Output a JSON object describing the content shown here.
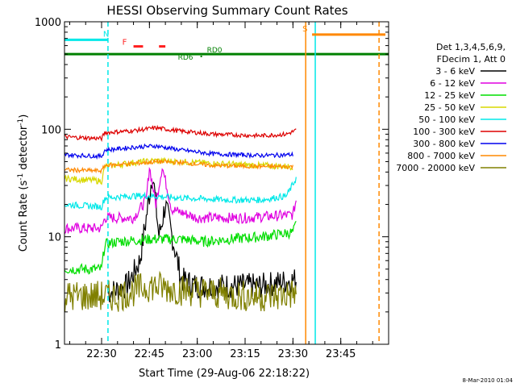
{
  "chart_data": {
    "type": "line",
    "title": "HESSI Observing Summary Count Rates",
    "xlabel": "Start Time (29-Aug-06 22:18:22)",
    "ylabel_main": "Count Rate (s",
    "ylabel_sup1": "-1",
    "ylabel_mid": " detector",
    "ylabel_sup2": "-1",
    "ylabel_end": ")",
    "yscale": "log",
    "ylim": [
      1,
      1000
    ],
    "xlim": [
      "22:18:22",
      "24:00"
    ],
    "x_ticks": [
      "22:30",
      "22:45",
      "23:00",
      "23:15",
      "23:30",
      "23:45"
    ],
    "y_ticks": [
      "1",
      "10",
      "100",
      "1000"
    ],
    "legend": {
      "placement": "right",
      "header1": "Det 1,3,4,5,6,9,",
      "header2": "FDecim 1, Att 0",
      "entries": [
        {
          "label": "3 - 6 keV",
          "color": "#000000"
        },
        {
          "label": "6 - 12 keV",
          "color": "#e000e0"
        },
        {
          "label": "12 - 25 keV",
          "color": "#00dd00"
        },
        {
          "label": "25 - 50 keV",
          "color": "#d8d800"
        },
        {
          "label": "50 - 100 keV",
          "color": "#00e8e8"
        },
        {
          "label": "100 - 300 keV",
          "color": "#dd0000"
        },
        {
          "label": "300 - 800 keV",
          "color": "#0000ee"
        },
        {
          "label": "800 - 7000 keV",
          "color": "#ff8800"
        },
        {
          "label": "7000 - 20000 keV",
          "color": "#808000"
        }
      ]
    },
    "series": [
      {
        "name": "3 - 6 keV",
        "color": "#000000",
        "x": [
          "22:32",
          "22:38",
          "22:42",
          "22:44",
          "22:46",
          "22:48",
          "22:50",
          "22:55",
          "23:00",
          "23:10",
          "23:20",
          "23:31"
        ],
        "y": [
          3,
          3.5,
          6,
          15,
          40,
          10,
          20,
          4,
          3.5,
          3.5,
          3.5,
          4
        ]
      },
      {
        "name": "6 - 12 keV",
        "color": "#e000e0",
        "x": [
          "22:18",
          "22:30",
          "22:31",
          "22:35",
          "22:40",
          "22:44",
          "22:45",
          "22:47",
          "22:49",
          "22:52",
          "23:00",
          "23:15",
          "23:30",
          "23:31"
        ],
        "y": [
          12,
          12,
          15,
          15,
          15,
          22,
          45,
          20,
          45,
          18,
          15,
          15,
          16,
          22
        ]
      },
      {
        "name": "12 - 25 keV",
        "color": "#00dd00",
        "x": [
          "22:18",
          "22:30",
          "22:31",
          "22:35",
          "22:45",
          "22:55",
          "23:02",
          "23:10",
          "23:20",
          "23:30",
          "23:31"
        ],
        "y": [
          5,
          5,
          8.5,
          9,
          9.5,
          9.5,
          9,
          9.5,
          10,
          11,
          13
        ]
      },
      {
        "name": "25 - 50 keV",
        "color": "#d8d800",
        "x": [
          "22:18",
          "22:30",
          "22:31",
          "22:40",
          "22:47",
          "22:55",
          "23:05",
          "23:20",
          "23:30"
        ],
        "y": [
          35,
          33,
          45,
          49,
          51,
          50,
          48,
          46,
          45
        ]
      },
      {
        "name": "50 - 100 keV",
        "color": "#00e8e8",
        "x": [
          "22:18",
          "22:30",
          "22:31",
          "22:40",
          "22:45",
          "22:55",
          "23:10",
          "23:20",
          "23:28",
          "23:31"
        ],
        "y": [
          20,
          19,
          23,
          24,
          24,
          23,
          22,
          22,
          24,
          35
        ]
      },
      {
        "name": "100 - 300 keV",
        "color": "#dd0000",
        "x": [
          "22:18",
          "22:30",
          "22:31",
          "22:40",
          "22:47",
          "22:55",
          "23:05",
          "23:20",
          "23:28",
          "23:31"
        ],
        "y": [
          85,
          82,
          93,
          97,
          103,
          96,
          90,
          87,
          90,
          98
        ]
      },
      {
        "name": "300 - 800 keV",
        "color": "#0000ee",
        "x": [
          "22:18",
          "22:30",
          "22:31",
          "22:40",
          "22:47",
          "22:55",
          "23:05",
          "23:20",
          "23:30"
        ],
        "y": [
          58,
          56,
          64,
          68,
          70,
          64,
          59,
          57,
          58
        ]
      },
      {
        "name": "800 - 7000 keV",
        "color": "#ff8800",
        "x": [
          "22:18",
          "22:30",
          "22:31",
          "22:40",
          "22:48",
          "22:55",
          "23:05",
          "23:20",
          "23:30"
        ],
        "y": [
          42,
          41,
          46,
          48,
          50,
          49,
          46,
          45,
          45
        ]
      },
      {
        "name": "7000 - 20000 keV",
        "color": "#808000",
        "x": [
          "22:18",
          "22:30",
          "22:35",
          "22:45",
          "22:55",
          "23:05",
          "23:15",
          "23:25",
          "23:31"
        ],
        "y": [
          2.8,
          2.8,
          2.8,
          3.5,
          3.2,
          3,
          2.8,
          2.8,
          3
        ]
      }
    ],
    "flags": [
      {
        "label": "N",
        "color": "#00e8e8",
        "x_start": "22:18:22",
        "x_end": "22:32",
        "level": 680
      },
      {
        "label": "F",
        "color": "#ff2020",
        "segments": [
          [
            "22:40",
            "22:43"
          ],
          [
            "22:48",
            "22:50"
          ]
        ],
        "level": 590
      },
      {
        "label": "S",
        "color": "#ff8800",
        "x_start": "23:36",
        "x_end": "23:59",
        "level": 760
      },
      {
        "label": "RD6",
        "color": "#008000",
        "x": "23:01",
        "level": 460
      },
      {
        "label": "RD0",
        "color": "#008000",
        "x": "23:02",
        "level": 500
      }
    ],
    "saa_line": {
      "color": "#008000",
      "level": 500
    },
    "vlines": [
      {
        "x": "22:32",
        "color": "#00e8e8",
        "style": "dashed"
      },
      {
        "x": "23:34",
        "color": "#ff8800",
        "style": "solid"
      },
      {
        "x": "23:37",
        "color": "#00e8e8",
        "style": "solid"
      },
      {
        "x": "23:57",
        "color": "#ff8800",
        "style": "dashed"
      }
    ],
    "grid": false
  },
  "footer": {
    "timestamp": "8-Mar-2010 01:04"
  }
}
